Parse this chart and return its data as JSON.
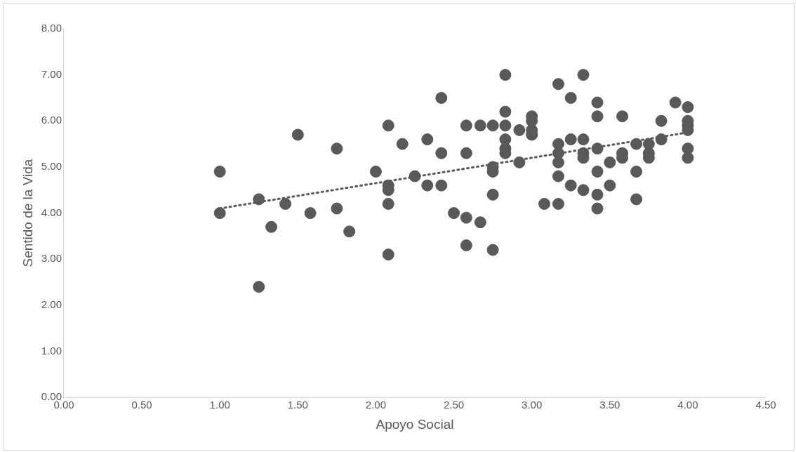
{
  "chart_data": {
    "type": "scatter",
    "xlabel": "Apoyo Social",
    "ylabel": "Sentido de la Vida",
    "marker": "circle",
    "grid": false,
    "legend": false,
    "xlim": [
      0,
      4.5
    ],
    "xticks": [
      {
        "value": 0,
        "label": "0.00"
      },
      {
        "value": 0.5,
        "label": "0.50"
      },
      {
        "value": 1,
        "label": "1.00"
      },
      {
        "value": 1.5,
        "label": "1.50"
      },
      {
        "value": 2,
        "label": "2.00"
      },
      {
        "value": 2.5,
        "label": "2.50"
      },
      {
        "value": 3,
        "label": "3.00"
      },
      {
        "value": 3.5,
        "label": "3.50"
      },
      {
        "value": 4,
        "label": "4.00"
      },
      {
        "value": 4.5,
        "label": "4.50"
      }
    ],
    "ylim": [
      0,
      8
    ],
    "yticks": [
      {
        "value": 0,
        "label": "0.00"
      },
      {
        "value": 1,
        "label": "1.00"
      },
      {
        "value": 2,
        "label": "2.00"
      },
      {
        "value": 3,
        "label": "3.00"
      },
      {
        "value": 4,
        "label": "4.00"
      },
      {
        "value": 5,
        "label": "5.00"
      },
      {
        "value": 6,
        "label": "6.00"
      },
      {
        "value": 7,
        "label": "7.00"
      },
      {
        "value": 8,
        "label": "8.00"
      }
    ],
    "series": [
      {
        "color": "#595959",
        "x": [
          1,
          1,
          1.25,
          1.25,
          1.33,
          1.42,
          1.5,
          1.58,
          1.75,
          1.75,
          1.83,
          2,
          2.08,
          2.08,
          2.08,
          2.08,
          2.08,
          2.17,
          2.25,
          2.33,
          2.33,
          2.42,
          2.42,
          2.42,
          2.5,
          2.58,
          2.58,
          2.58,
          2.58,
          2.67,
          2.67,
          2.75,
          2.75,
          2.75,
          2.75,
          2.75,
          2.83,
          2.83,
          2.83,
          2.83,
          2.83,
          2.83,
          2.92,
          2.92,
          3,
          3,
          3,
          3,
          3.08,
          3.17,
          3.17,
          3.17,
          3.17,
          3.17,
          3.17,
          3.25,
          3.25,
          3.25,
          3.33,
          3.33,
          3.33,
          3.33,
          3.33,
          3.42,
          3.42,
          3.42,
          3.42,
          3.42,
          3.42,
          3.5,
          3.5,
          3.58,
          3.58,
          3.58,
          3.67,
          3.67,
          3.67,
          3.75,
          3.75,
          3.75,
          3.83,
          3.83,
          3.92,
          4,
          4,
          4,
          4,
          4,
          4
        ],
        "values": [
          4.9,
          4,
          4.3,
          2.4,
          3.7,
          4.2,
          5.7,
          4,
          5.4,
          4.1,
          3.6,
          4.9,
          5.9,
          4.6,
          4.5,
          4.2,
          3.1,
          5.5,
          4.8,
          5.6,
          4.6,
          6.5,
          5.3,
          4.6,
          4,
          5.9,
          5.3,
          3.9,
          3.3,
          5.9,
          3.8,
          5.9,
          5,
          4.9,
          4.4,
          3.2,
          7,
          6.2,
          5.9,
          5.6,
          5.4,
          5.3,
          5.8,
          5.1,
          6.1,
          6,
          5.8,
          5.7,
          4.2,
          6.8,
          5.5,
          5.3,
          5.1,
          4.8,
          4.2,
          6.5,
          5.6,
          4.6,
          7,
          5.6,
          5.3,
          5.2,
          4.5,
          6.4,
          6.1,
          5.4,
          4.9,
          4.4,
          4.1,
          5.1,
          4.6,
          6.1,
          5.3,
          5.2,
          5.5,
          4.9,
          4.3,
          5.5,
          5.3,
          5.2,
          6,
          5.6,
          6.4,
          6.3,
          6,
          5.9,
          5.8,
          5.4,
          5.2
        ]
      },
      {
        "type": "line",
        "color": "#595959",
        "line_style": "dotted",
        "marker": "none",
        "x": [
          1,
          4
        ],
        "values": [
          4.1,
          5.75
        ]
      }
    ]
  }
}
